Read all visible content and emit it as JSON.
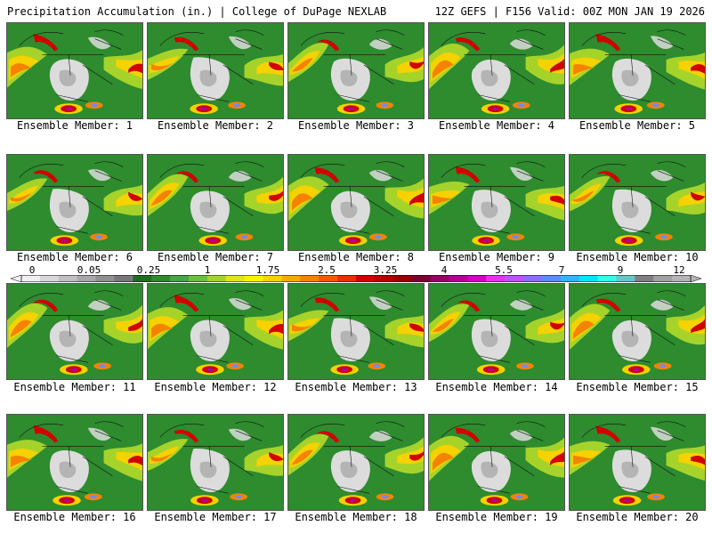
{
  "header": {
    "left_title": "Precipitation Accumulation (in.) | College of DuPage NEXLAB",
    "right_title": "12Z GEFS | F156 Valid: 00Z MON JAN 19 2026"
  },
  "members": [
    "Ensemble Member: 1",
    "Ensemble Member: 2",
    "Ensemble Member: 3",
    "Ensemble Member: 4",
    "Ensemble Member: 5",
    "Ensemble Member: 6",
    "Ensemble Member: 7",
    "Ensemble Member: 8",
    "Ensemble Member: 9",
    "Ensemble Member: 10",
    "Ensemble Member: 11",
    "Ensemble Member: 12",
    "Ensemble Member: 13",
    "Ensemble Member: 14",
    "Ensemble Member: 15",
    "Ensemble Member: 16",
    "Ensemble Member: 17",
    "Ensemble Member: 18",
    "Ensemble Member: 19",
    "Ensemble Member: 20"
  ],
  "colorbar": {
    "ticks": [
      "0",
      "0.05",
      "0.25",
      "1",
      "1.75",
      "2.5",
      "3.25",
      "4",
      "5.5",
      "7",
      "9",
      "12"
    ],
    "colors": [
      "#f0f0f0",
      "#d8d8d8",
      "#c0c0c0",
      "#a8a8a8",
      "#909090",
      "#787878",
      "#1e6e1e",
      "#2e8b2e",
      "#46a546",
      "#6cbf3c",
      "#a6d32a",
      "#dce61e",
      "#f5f500",
      "#f5d200",
      "#f5aa00",
      "#f58200",
      "#f55a00",
      "#e63200",
      "#d20000",
      "#b40000",
      "#960000",
      "#7d0032",
      "#960064",
      "#b40096",
      "#d200c8",
      "#e632f0",
      "#be50ff",
      "#8c6eff",
      "#5a8cff",
      "#32b4ff",
      "#00e6ff",
      "#32ffe6",
      "#64c8c8",
      "#808080",
      "#a0a0a0",
      "#b4b4b4"
    ]
  },
  "map_colors": {
    "land": "#2e8b2e",
    "dry": "#dcdcdc",
    "dry_mid": "#9a9a9a",
    "light": "#a6d32a",
    "moderate": "#f5d200",
    "heavy": "#f58200",
    "very_heavy": "#d20000",
    "extreme": "#b40096",
    "max": "#6e8cff",
    "border": "#111111"
  }
}
